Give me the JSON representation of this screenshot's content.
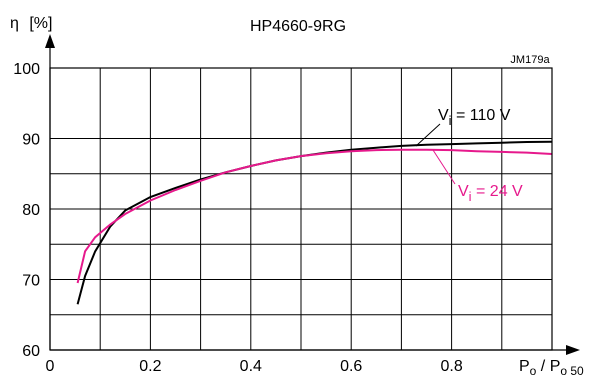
{
  "chart_data": {
    "type": "line",
    "title": "HP4660-9RG",
    "code": "JM179a",
    "ylabel": {
      "symbol": "η",
      "unit": "[%]"
    },
    "xlabel": {
      "p": "P",
      "p_sub": "o",
      "slash": " / ",
      "p2": "P",
      "p2_sub": "o 50"
    },
    "xlim": [
      0,
      1.0
    ],
    "ylim": [
      60,
      100
    ],
    "xticks": [
      0,
      0.2,
      0.4,
      0.6,
      0.8
    ],
    "xtick_labels": [
      "0",
      "0.2",
      "0.4",
      "0.6",
      "0.8"
    ],
    "yticks": [
      60,
      70,
      80,
      90,
      100
    ],
    "ytick_labels": [
      "60",
      "70",
      "80",
      "90",
      "100"
    ],
    "grid": true,
    "series": [
      {
        "name": "Vi = 110 V",
        "label": {
          "main": "V",
          "sub": "i",
          "rest": " = 110 V"
        },
        "color": "#000000",
        "points": [
          [
            0.055,
            66.5
          ],
          [
            0.07,
            70.5
          ],
          [
            0.09,
            74.0
          ],
          [
            0.12,
            77.5
          ],
          [
            0.15,
            79.8
          ],
          [
            0.2,
            81.7
          ],
          [
            0.25,
            83.0
          ],
          [
            0.3,
            84.2
          ],
          [
            0.35,
            85.2
          ],
          [
            0.4,
            86.1
          ],
          [
            0.45,
            86.9
          ],
          [
            0.5,
            87.5
          ],
          [
            0.55,
            88.0
          ],
          [
            0.6,
            88.4
          ],
          [
            0.65,
            88.7
          ],
          [
            0.7,
            88.95
          ],
          [
            0.75,
            89.1
          ],
          [
            0.8,
            89.2
          ],
          [
            0.85,
            89.3
          ],
          [
            0.9,
            89.4
          ],
          [
            0.95,
            89.5
          ],
          [
            1.0,
            89.55
          ]
        ]
      },
      {
        "name": "Vi = 24 V",
        "label": {
          "main": "V",
          "sub": "i",
          "rest": " = 24 V"
        },
        "color": "#e6198c",
        "points": [
          [
            0.055,
            69.5
          ],
          [
            0.07,
            74.0
          ],
          [
            0.09,
            76.0
          ],
          [
            0.12,
            77.8
          ],
          [
            0.15,
            79.3
          ],
          [
            0.2,
            81.2
          ],
          [
            0.25,
            82.7
          ],
          [
            0.3,
            84.0
          ],
          [
            0.35,
            85.2
          ],
          [
            0.4,
            86.1
          ],
          [
            0.45,
            86.9
          ],
          [
            0.5,
            87.5
          ],
          [
            0.55,
            87.9
          ],
          [
            0.6,
            88.2
          ],
          [
            0.65,
            88.35
          ],
          [
            0.7,
            88.4
          ],
          [
            0.75,
            88.4
          ],
          [
            0.8,
            88.35
          ],
          [
            0.85,
            88.2
          ],
          [
            0.9,
            88.1
          ],
          [
            0.95,
            88.0
          ],
          [
            1.0,
            87.8
          ]
        ]
      }
    ]
  }
}
